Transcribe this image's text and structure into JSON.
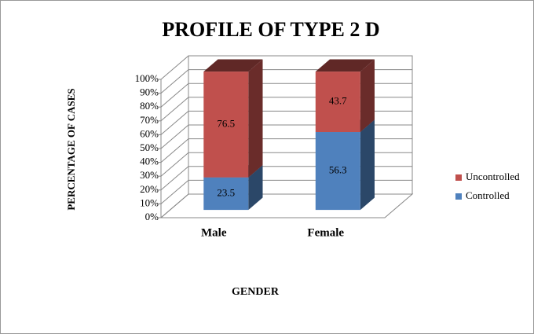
{
  "chart_data": {
    "type": "bar3d_stacked",
    "title": "PROFILE OF TYPE 2 D",
    "x_label": "GENDER",
    "y_label": "PERCENTAGE OF CASES",
    "categories": [
      "Male",
      "Female"
    ],
    "series": [
      {
        "name": "Controlled",
        "color": "#4f81bd",
        "values": [
          23.5,
          56.3
        ]
      },
      {
        "name": "Uncontrolled",
        "color": "#c0504d",
        "values": [
          76.5,
          43.7
        ]
      }
    ],
    "ylim": [
      0,
      100
    ],
    "yticks": [
      {
        "value": 0,
        "label": "0%"
      },
      {
        "value": 10,
        "label": "10%"
      },
      {
        "value": 20,
        "label": "20%"
      },
      {
        "value": 30,
        "label": "30%"
      },
      {
        "value": 40,
        "label": "40%"
      },
      {
        "value": 50,
        "label": "50%"
      },
      {
        "value": 60,
        "label": "60%"
      },
      {
        "value": 70,
        "label": "70%"
      },
      {
        "value": 80,
        "label": "80%"
      },
      {
        "value": 90,
        "label": "90%"
      },
      {
        "value": 100,
        "label": "100%"
      }
    ],
    "grid": true,
    "legend": "right"
  }
}
